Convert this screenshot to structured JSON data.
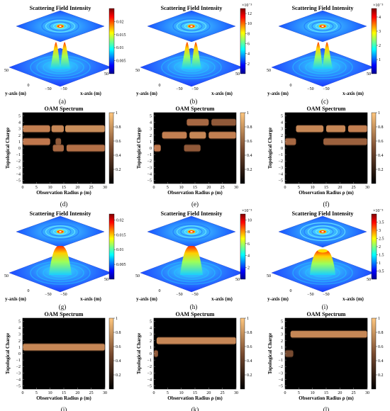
{
  "figure": {
    "chart_data": [
      {
        "id": "a",
        "type": "surface3d",
        "title": "Scattering Field Intensity",
        "caption": "(a)",
        "xlabel": "x-axis (m)",
        "ylabel": "y-axis (m)",
        "axis_ticks": [
          "50",
          "0",
          "−50",
          "−50",
          "50"
        ],
        "colorbar_ticks": [
          "0.005",
          "0.01",
          "0.015",
          "0.02"
        ],
        "colorbar_range": [
          0,
          0.025
        ],
        "colorbar_exponent": ""
      },
      {
        "id": "b",
        "type": "surface3d",
        "title": "Scattering Field Intensity",
        "caption": "(b)",
        "xlabel": "x-axis (m)",
        "ylabel": "y-axis (m)",
        "axis_ticks": [
          "50",
          "0",
          "−50",
          "−50",
          "50"
        ],
        "colorbar_ticks": [
          "2",
          "4",
          "6",
          "8",
          "10",
          "12"
        ],
        "colorbar_range": [
          0,
          13
        ],
        "colorbar_exponent": "×10⁻³"
      },
      {
        "id": "c",
        "type": "surface3d",
        "title": "Scattering Field Intensity",
        "caption": "(c)",
        "xlabel": "x-axis (m)",
        "ylabel": "y-axis (m)",
        "axis_ticks": [
          "50",
          "0",
          "−50",
          "−50",
          "50"
        ],
        "colorbar_ticks": [
          "1",
          "2",
          "3",
          "4"
        ],
        "colorbar_range": [
          0,
          4.6
        ],
        "colorbar_exponent": "×10⁻³"
      },
      {
        "id": "d",
        "type": "heatmap",
        "title": "OAM Spectrum",
        "caption": "(d)",
        "xlabel": "Observation Radius ρ (m)",
        "ylabel": "Topological Charge",
        "x_ticks": [
          "0",
          "5",
          "10",
          "15",
          "20",
          "25",
          "30"
        ],
        "y_ticks": [
          "5",
          "4",
          "3",
          "2",
          "1",
          "0",
          "−1",
          "−2",
          "−3",
          "−4",
          "−5"
        ],
        "colorbar_ticks": [
          "1",
          "0.8",
          "0.6",
          "0.4",
          "0.2"
        ],
        "bands": [
          {
            "charge": 3,
            "segments": [
              [
                0,
                10,
                0.85
              ],
              [
                10.5,
                15,
                0.9
              ],
              [
                15.5,
                30,
                0.95
              ]
            ]
          },
          {
            "charge": 1,
            "segments": [
              [
                0,
                10,
                0.8
              ],
              [
                12,
                14,
                0.6
              ]
            ]
          },
          {
            "charge": 0,
            "segments": [
              [
                11,
                15,
                0.7
              ],
              [
                16,
                30,
                0.75
              ]
            ]
          }
        ]
      },
      {
        "id": "e",
        "type": "heatmap",
        "title": "OAM Spectrum",
        "caption": "(e)",
        "xlabel": "Observation Radius ρ (m)",
        "ylabel": "Topological Charge",
        "x_ticks": [
          "0",
          "5",
          "10",
          "15",
          "20",
          "25",
          "30"
        ],
        "y_ticks": [
          "5",
          "4",
          "3",
          "2",
          "1",
          "0",
          "−1",
          "−2",
          "−3",
          "−4",
          "−5"
        ],
        "colorbar_ticks": [
          "1",
          "0.8",
          "0.6",
          "0.4",
          "0.2"
        ],
        "bands": [
          {
            "charge": 4,
            "segments": [
              [
                12,
                20,
                0.7
              ],
              [
                21,
                30,
                0.6
              ]
            ]
          },
          {
            "charge": 2,
            "segments": [
              [
                3,
                12,
                0.85
              ],
              [
                13,
                19,
                0.9
              ],
              [
                20,
                30,
                0.85
              ]
            ]
          },
          {
            "charge": 0,
            "segments": [
              [
                0,
                2.5,
                0.8
              ],
              [
                11,
                17,
                0.6
              ]
            ]
          }
        ]
      },
      {
        "id": "f",
        "type": "heatmap",
        "title": "OAM Spectrum",
        "caption": "(f)",
        "xlabel": "Observation Radius ρ (m)",
        "ylabel": "Topological Charge",
        "x_ticks": [
          "0",
          "5",
          "10",
          "15",
          "20",
          "25",
          "30"
        ],
        "y_ticks": [
          "5",
          "4",
          "3",
          "2",
          "1",
          "0",
          "−1",
          "−2",
          "−3",
          "−4",
          "−5"
        ],
        "colorbar_ticks": [
          "1",
          "0.8",
          "0.6",
          "0.4",
          "0.2"
        ],
        "bands": [
          {
            "charge": 3,
            "segments": [
              [
                4,
                14,
                0.9
              ],
              [
                15,
                22,
                0.9
              ],
              [
                23,
                30,
                0.85
              ]
            ]
          },
          {
            "charge": 1,
            "segments": [
              [
                0,
                4,
                0.7
              ],
              [
                14,
                30,
                0.65
              ]
            ]
          }
        ]
      },
      {
        "id": "g",
        "type": "surface3d",
        "title": "Scattering Field Intensity",
        "caption": "(g)",
        "xlabel": "x-axis (m)",
        "ylabel": "y-axis (m)",
        "axis_ticks": [
          "50",
          "0",
          "−50",
          "−50",
          "50"
        ],
        "colorbar_ticks": [
          "0.005",
          "0.01",
          "0.015",
          "0.02"
        ],
        "colorbar_range": [
          0,
          0.022
        ],
        "colorbar_exponent": ""
      },
      {
        "id": "h",
        "type": "surface3d",
        "title": "Scattering Field Intensity",
        "caption": "(h)",
        "xlabel": "x-axis (m)",
        "ylabel": "y-axis (m)",
        "axis_ticks": [
          "50",
          "0",
          "−50",
          "−50",
          "50"
        ],
        "colorbar_ticks": [
          "2",
          "4",
          "6",
          "8",
          "10"
        ],
        "colorbar_range": [
          0,
          11
        ],
        "colorbar_exponent": "×10⁻³"
      },
      {
        "id": "i",
        "type": "surface3d",
        "title": "Scattering Field Intensity",
        "caption": "(i)",
        "xlabel": "x-axis (m)",
        "ylabel": "y-axis (m)",
        "axis_ticks": [
          "50",
          "0",
          "−50",
          "−50",
          "50"
        ],
        "colorbar_ticks": [
          "0.5",
          "1",
          "1.5",
          "2",
          "2.5",
          "3",
          "3.5"
        ],
        "colorbar_range": [
          0,
          4
        ],
        "colorbar_exponent": "×10⁻³"
      },
      {
        "id": "j",
        "type": "heatmap",
        "title": "OAM Spectrum",
        "caption": "(j)",
        "xlabel": "Observation Radius ρ (m)",
        "ylabel": "Topological Charge",
        "x_ticks": [
          "0",
          "5",
          "10",
          "15",
          "20",
          "25",
          "30"
        ],
        "y_ticks": [
          "5",
          "4",
          "3",
          "2",
          "1",
          "0",
          "−1",
          "−2",
          "−3",
          "−4",
          "−5"
        ],
        "colorbar_ticks": [
          "1",
          "0.8",
          "0.6",
          "0.4",
          "0.2"
        ],
        "bands": [
          {
            "charge": 1,
            "segments": [
              [
                0,
                30,
                0.9
              ]
            ]
          }
        ]
      },
      {
        "id": "k",
        "type": "heatmap",
        "title": "OAM Spectrum",
        "caption": "(k)",
        "xlabel": "Observation Radius ρ (m)",
        "ylabel": "Topological Charge",
        "x_ticks": [
          "0",
          "5",
          "10",
          "15",
          "20",
          "25",
          "30"
        ],
        "y_ticks": [
          "5",
          "4",
          "3",
          "2",
          "1",
          "0",
          "−1",
          "−2",
          "−3",
          "−4",
          "−5"
        ],
        "colorbar_ticks": [
          "1",
          "0.8",
          "0.6",
          "0.4",
          "0.2"
        ],
        "bands": [
          {
            "charge": 2,
            "segments": [
              [
                1,
                30,
                0.9
              ]
            ]
          },
          {
            "charge": 0,
            "segments": [
              [
                0,
                1.5,
                0.6
              ]
            ]
          }
        ]
      },
      {
        "id": "l",
        "type": "heatmap",
        "title": "OAM Spectrum",
        "caption": "(l)",
        "xlabel": "Observation Radius ρ (m)",
        "ylabel": "Topological Charge",
        "x_ticks": [
          "0",
          "5",
          "10",
          "15",
          "20",
          "25",
          "30"
        ],
        "y_ticks": [
          "5",
          "4",
          "3",
          "2",
          "1",
          "0",
          "−1",
          "−2",
          "−3",
          "−4",
          "−5"
        ],
        "colorbar_ticks": [
          "1",
          "0.8",
          "0.6",
          "0.4",
          "0.2"
        ],
        "bands": [
          {
            "charge": 3,
            "segments": [
              [
                2,
                30,
                0.9
              ]
            ]
          },
          {
            "charge": 0,
            "segments": [
              [
                0,
                3,
                0.5
              ]
            ]
          }
        ]
      }
    ]
  }
}
